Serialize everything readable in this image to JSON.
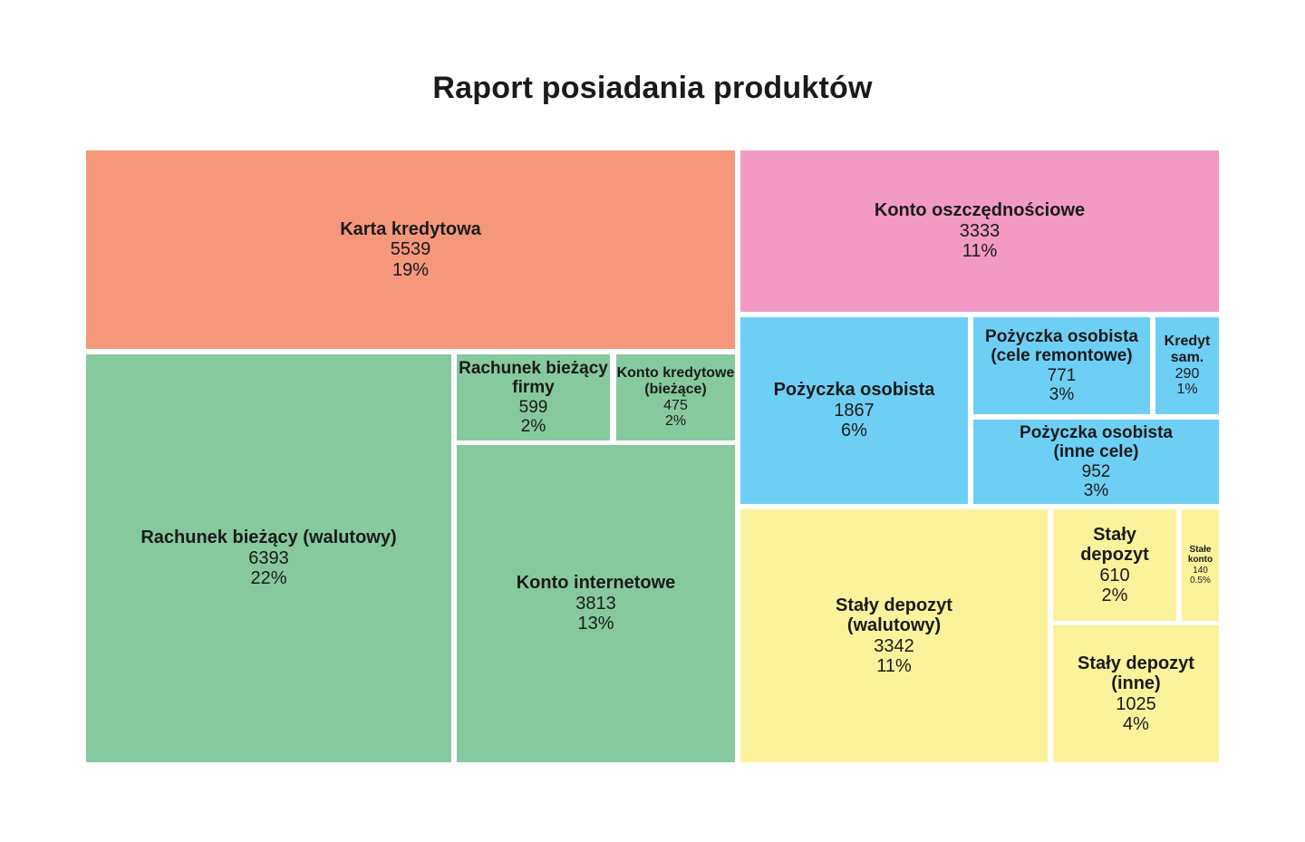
{
  "title": "Raport posiadania produktów",
  "chart_data": {
    "type": "treemap",
    "title": "Raport posiadania produktów",
    "items": [
      {
        "label": "Karta kredytowa",
        "value": 5539,
        "percent": "19%",
        "color": "#f5977a"
      },
      {
        "label": "Konto oszczędnościowe",
        "value": 3333,
        "percent": "11%",
        "color": "#f29ac3"
      },
      {
        "label": "Rachunek bieżący (walutowy)",
        "value": 6393,
        "percent": "22%",
        "color": "#86c99e"
      },
      {
        "label": "Rachunek bieżący firmy",
        "value": 599,
        "percent": "2%",
        "color": "#86c99e"
      },
      {
        "label": "Konto kredytowe (bieżące)",
        "value": 475,
        "percent": "2%",
        "color": "#86c99e"
      },
      {
        "label": "Konto internetowe",
        "value": 3813,
        "percent": "13%",
        "color": "#86c99e"
      },
      {
        "label": "Pożyczka osobista",
        "value": 1867,
        "percent": "6%",
        "color": "#6ecff5"
      },
      {
        "label": "Pożyczka osobista (cele remontowe)",
        "value": 771,
        "percent": "3%",
        "color": "#6ecff5"
      },
      {
        "label": "Kredyt sam.",
        "value": 290,
        "percent": "1%",
        "color": "#6ecff5"
      },
      {
        "label": "Pożyczka osobista (inne cele)",
        "value": 952,
        "percent": "3%",
        "color": "#6ecff5"
      },
      {
        "label": "Stały depozyt (walutowy)",
        "value": 3342,
        "percent": "11%",
        "color": "#fbf39b"
      },
      {
        "label": "Stały depozyt",
        "value": 610,
        "percent": "2%",
        "color": "#fbf39b"
      },
      {
        "label": "Stałe konto",
        "value": 140,
        "percent": "0.5%",
        "color": "#fbf39b"
      },
      {
        "label": "Stały depozyt (inne)",
        "value": 1025,
        "percent": "4%",
        "color": "#fbf39b"
      }
    ]
  }
}
